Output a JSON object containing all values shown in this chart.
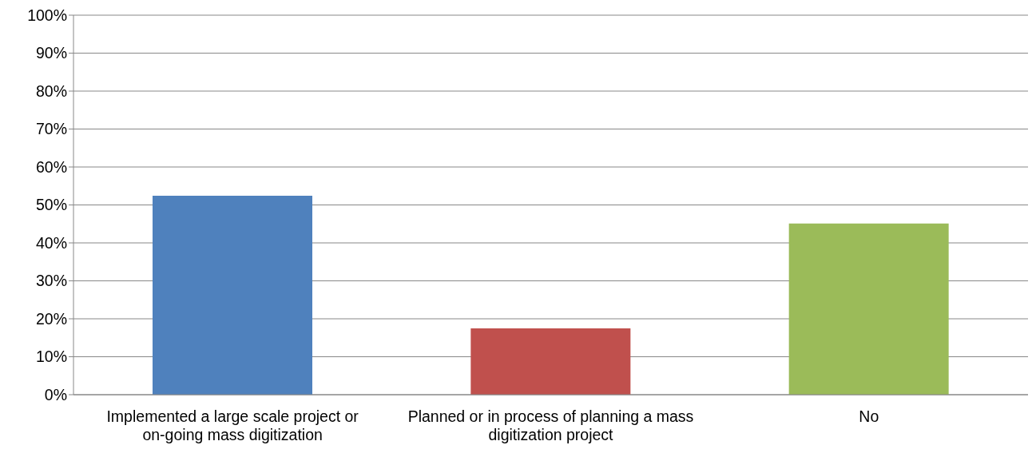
{
  "chart_data": {
    "type": "bar",
    "categories": [
      "Implemented a large scale project or on-going mass digitization",
      "Planned or in process of planning a mass digitization project",
      "No"
    ],
    "values": [
      52.4,
      17.5,
      45.1
    ],
    "colors": [
      "#4f81bd",
      "#c0504d",
      "#9bbb59"
    ],
    "ylim": [
      0,
      100
    ],
    "yticks": [
      {
        "value": 0,
        "label": "0%"
      },
      {
        "value": 10,
        "label": "10%"
      },
      {
        "value": 20,
        "label": "20%"
      },
      {
        "value": 30,
        "label": "30%"
      },
      {
        "value": 40,
        "label": "40%"
      },
      {
        "value": 50,
        "label": "50%"
      },
      {
        "value": 60,
        "label": "60%"
      },
      {
        "value": 70,
        "label": "70%"
      },
      {
        "value": 80,
        "label": "80%"
      },
      {
        "value": 90,
        "label": "90%"
      },
      {
        "value": 100,
        "label": "100%"
      }
    ],
    "grid": "y",
    "legend": false
  }
}
